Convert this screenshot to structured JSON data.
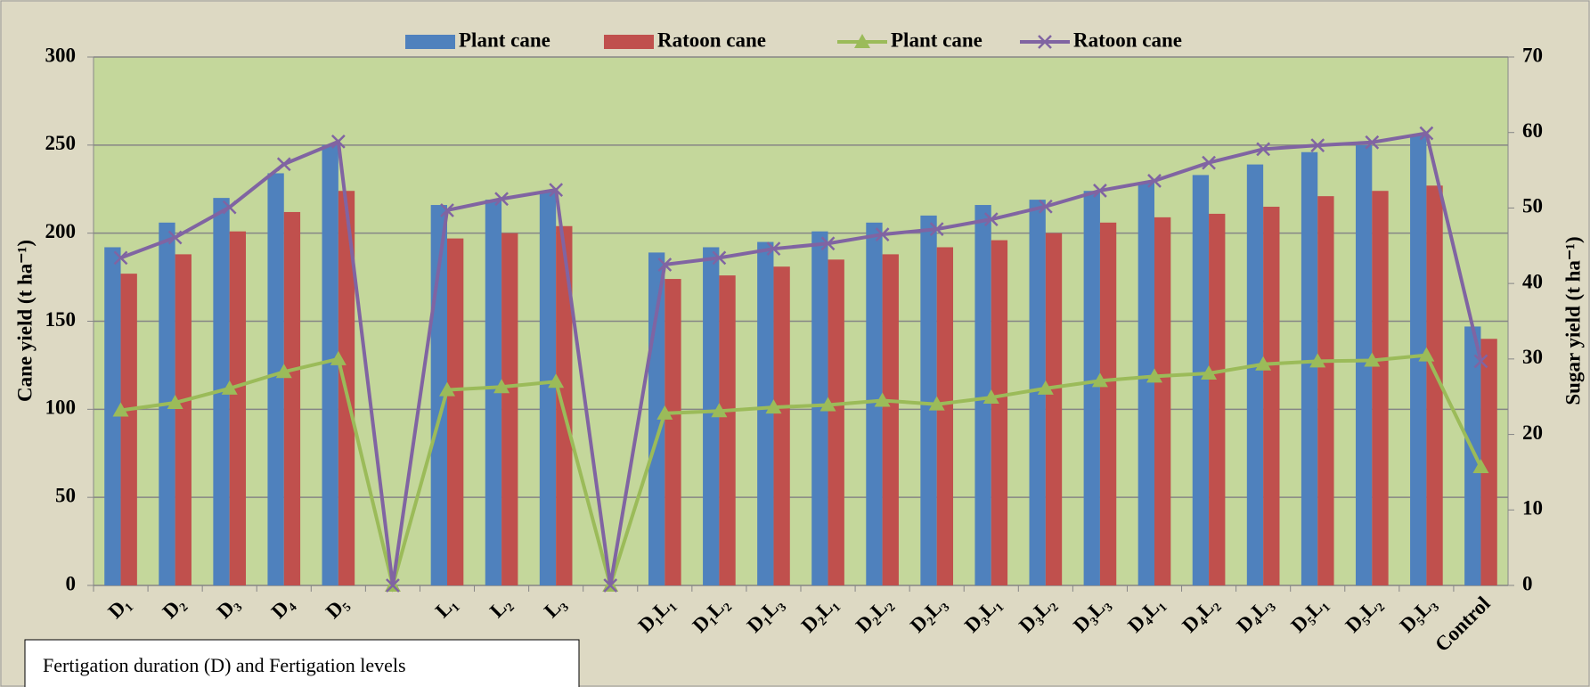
{
  "chart_data": {
    "type": "bar",
    "categories": [
      "D₁",
      "D₂",
      "D₃",
      "D₄",
      "D₅",
      null,
      "L₁",
      "L₂",
      "L₃",
      null,
      "D₁L₁",
      "D₁L₂",
      "D₁L₃",
      "D₂L₁",
      "D₂L₂",
      "D₂L₃",
      "D₃L₁",
      "D₃L₂",
      "D₃L₃",
      "D₄L₁",
      "D₄L₂",
      "D₄L₃",
      "D₅L₁",
      "D₅L₂",
      "D₅L₃",
      "Control"
    ],
    "series": [
      {
        "name": "Plant cane",
        "type": "bar",
        "color": "#4f81bd",
        "values": [
          192,
          206,
          220,
          234,
          250,
          null,
          216,
          219,
          224,
          null,
          189,
          192,
          195,
          201,
          206,
          210,
          216,
          219,
          224,
          229,
          233,
          239,
          246,
          250,
          256,
          147
        ]
      },
      {
        "name": "Ratoon cane",
        "type": "bar",
        "color": "#c0504d",
        "values": [
          177,
          188,
          201,
          212,
          224,
          null,
          197,
          200,
          204,
          null,
          174,
          176,
          181,
          185,
          188,
          192,
          196,
          200,
          206,
          209,
          211,
          215,
          221,
          224,
          227,
          140
        ]
      },
      {
        "name": "Plant cane",
        "type": "line",
        "axis": "y2",
        "marker": "triangle",
        "color": "#9bbb59",
        "values": [
          23.2,
          24.2,
          26.1,
          28.3,
          30.0,
          0,
          25.9,
          26.3,
          27.0,
          0,
          22.8,
          23.1,
          23.6,
          23.9,
          24.5,
          24.0,
          24.9,
          26.1,
          27.1,
          27.7,
          28.1,
          29.3,
          29.7,
          29.8,
          30.5,
          15.7
        ]
      },
      {
        "name": "Ratoon cane",
        "type": "line",
        "axis": "y2",
        "marker": "x",
        "color": "#8064a2",
        "values": [
          43.4,
          46.1,
          50.1,
          55.8,
          58.8,
          0,
          49.7,
          51.2,
          52.4,
          0,
          42.5,
          43.4,
          44.6,
          45.3,
          46.5,
          47.2,
          48.5,
          50.2,
          52.3,
          53.6,
          56.0,
          57.8,
          58.3,
          58.7,
          59.9,
          29.7
        ]
      }
    ],
    "ylabel": "Cane yield  (t ha⁻¹)",
    "y2label": "Sugar  yield  (t ha⁻¹)",
    "ylim": [
      0,
      300
    ],
    "yticks": [
      0,
      50,
      100,
      150,
      200,
      250,
      300
    ],
    "y2lim": [
      0,
      70
    ],
    "y2ticks": [
      0,
      10,
      20,
      30,
      40,
      50,
      60,
      70
    ],
    "grid": true,
    "legend": "top",
    "annotation": "Fertigation duration (D) and Fertigation levels"
  }
}
